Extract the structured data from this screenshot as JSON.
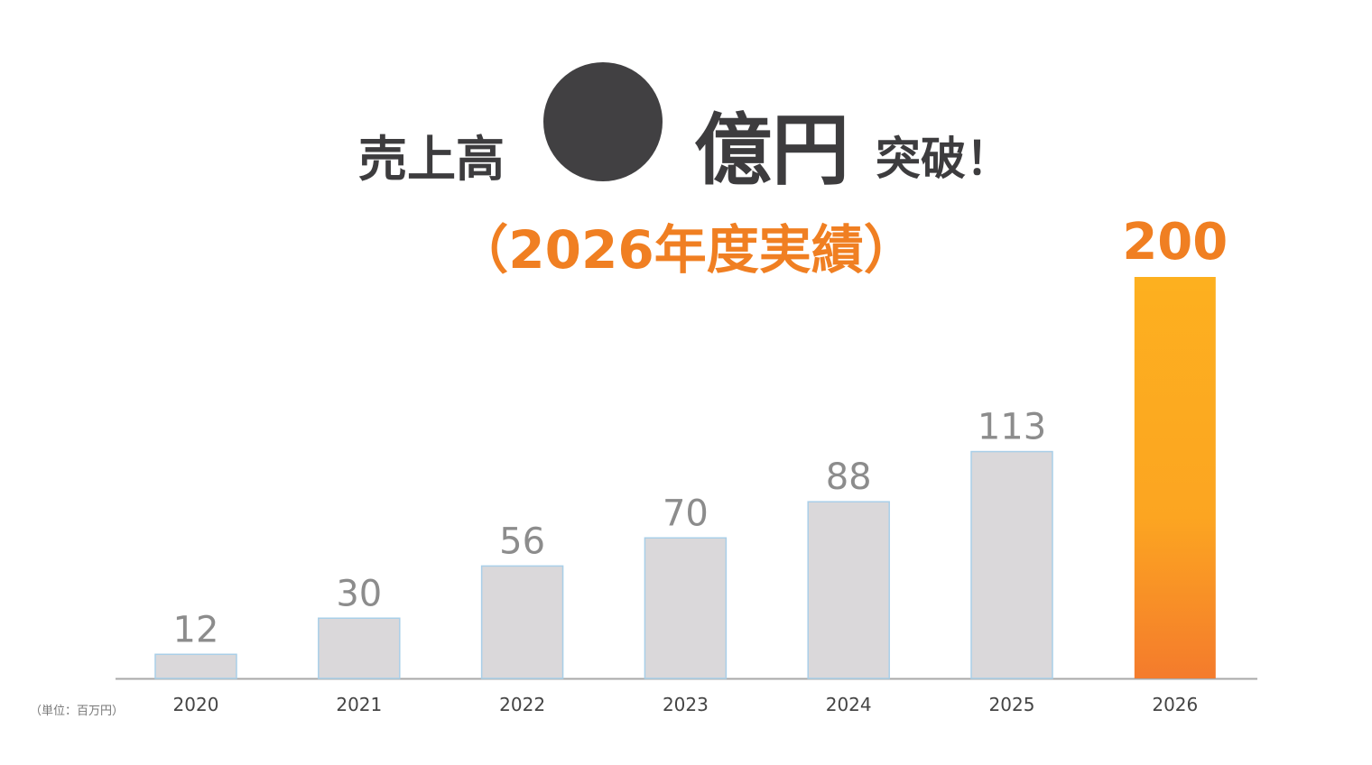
{
  "chart_data": {
    "type": "bar",
    "title_parts": [
      "売上高",
      "億円",
      "突破！"
    ],
    "subtitle": "（2026年度実績）",
    "unit_note": "（単位：百万円）",
    "categories": [
      "2020",
      "2021",
      "2022",
      "2023",
      "2024",
      "2025",
      "2026"
    ],
    "values": [
      12,
      30,
      56,
      70,
      88,
      113,
      200
    ],
    "colors": [
      "#dad8da",
      "#dad8da",
      "#dad8da",
      "#dad8da",
      "#dad8da",
      "#dad8da",
      "#f7941d"
    ],
    "label_colors": [
      "#8c8c8c",
      "#8c8c8c",
      "#8c8c8c",
      "#8c8c8c",
      "#8c8c8c",
      "#8c8c8c",
      "#f07f22"
    ],
    "ylim": [
      0,
      200
    ]
  }
}
